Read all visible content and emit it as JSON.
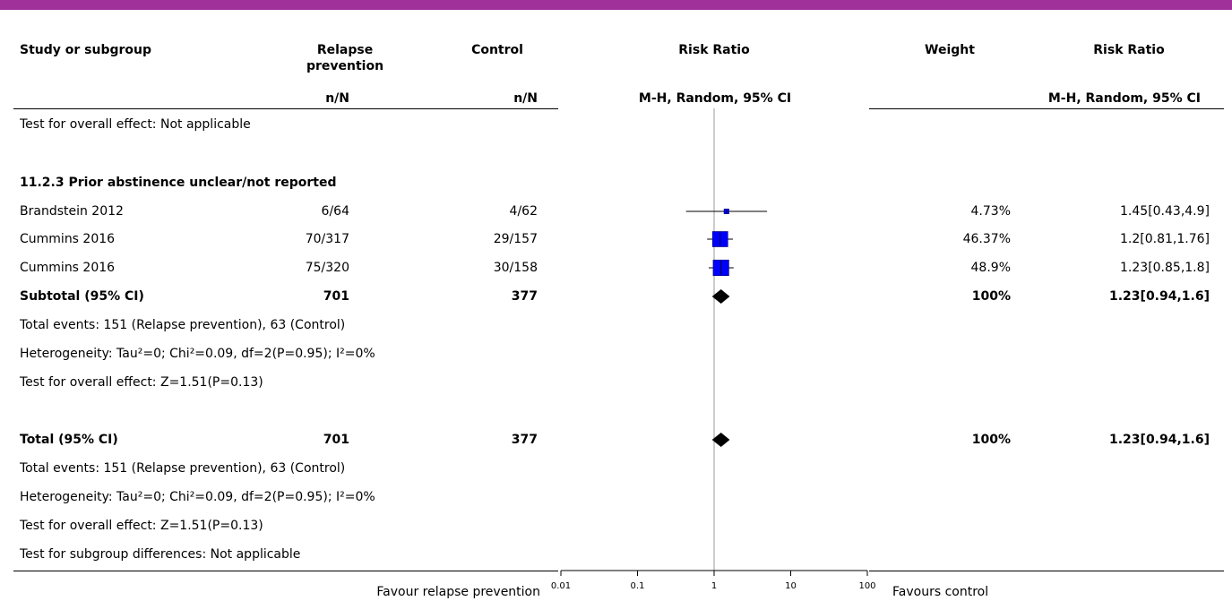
{
  "colors": {
    "accent_bar": "#a0309a",
    "square_fill": "#0000ff",
    "square_stroke": "#00006a",
    "diamond": "#000000"
  },
  "header": {
    "study": "Study or subgroup",
    "exp_line1": "Relapse",
    "exp_line2": "prevention",
    "ctrl": "Control",
    "rr": "Risk Ratio",
    "weight": "Weight",
    "rr2": "Risk Ratio",
    "exp_sub": "n/N",
    "ctrl_sub": "n/N",
    "rr_sub": "M-H, Random, 95% CI",
    "rr2_sub": "M-H, Random, 95% CI"
  },
  "top_note": "Test for overall effect: Not applicable",
  "subgroup": {
    "title": "11.2.3 Prior abstinence unclear/not reported",
    "studies": [
      {
        "name": "Brandstein 2012",
        "exp": "6/64",
        "ctrl": "4/62",
        "weight": "4.73%",
        "ci": "1.45[0.43,4.9]"
      },
      {
        "name": "Cummins 2016",
        "exp": "70/317",
        "ctrl": "29/157",
        "weight": "46.37%",
        "ci": "1.2[0.81,1.76]"
      },
      {
        "name": "Cummins 2016",
        "exp": "75/320",
        "ctrl": "30/158",
        "weight": "48.9%",
        "ci": "1.23[0.85,1.8]"
      }
    ],
    "subtotal": {
      "label": "Subtotal (95% CI)",
      "exp": "701",
      "ctrl": "377",
      "weight": "100%",
      "ci": "1.23[0.94,1.6]"
    },
    "notes": [
      "Total events: 151 (Relapse prevention), 63 (Control)",
      "Heterogeneity: Tau²=0; Chi²=0.09, df=2(P=0.95); I²=0%",
      "Test for overall effect: Z=1.51(P=0.13)"
    ]
  },
  "total": {
    "label": "Total (95% CI)",
    "exp": "701",
    "ctrl": "377",
    "weight": "100%",
    "ci": "1.23[0.94,1.6]",
    "notes": [
      "Total events: 151 (Relapse prevention), 63 (Control)",
      "Heterogeneity: Tau²=0; Chi²=0.09, df=2(P=0.95); I²=0%",
      "Test for overall effect: Z=1.51(P=0.13)",
      "Test for subgroup differences: Not applicable"
    ]
  },
  "footer": {
    "favours_left": "Favour relapse prevention",
    "favours_right": "Favours control"
  },
  "chart_data": {
    "type": "forest",
    "x_scale": "log",
    "xlim": [
      0.01,
      100
    ],
    "x_ticks": [
      "0.01",
      "0.1",
      "1",
      "10",
      "100"
    ],
    "reference_line": 1,
    "studies": [
      {
        "name": "Brandstein 2012",
        "rr": 1.45,
        "lo": 0.43,
        "hi": 4.9,
        "weight": 4.73
      },
      {
        "name": "Cummins 2016",
        "rr": 1.2,
        "lo": 0.81,
        "hi": 1.76,
        "weight": 46.37
      },
      {
        "name": "Cummins 2016",
        "rr": 1.23,
        "lo": 0.85,
        "hi": 1.8,
        "weight": 48.9
      }
    ],
    "subtotal": {
      "rr": 1.23,
      "lo": 0.94,
      "hi": 1.6
    },
    "total": {
      "rr": 1.23,
      "lo": 0.94,
      "hi": 1.6
    }
  }
}
